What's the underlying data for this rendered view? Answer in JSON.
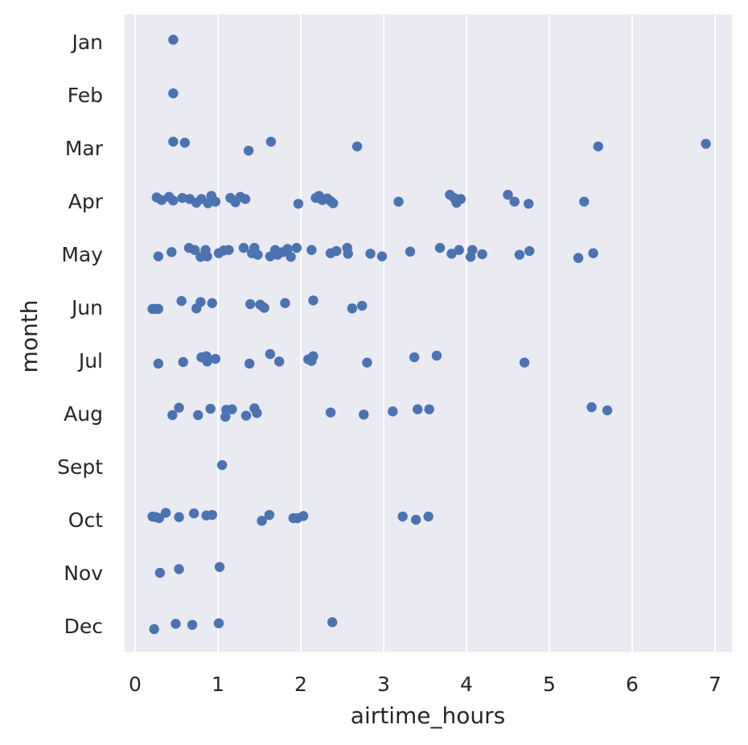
{
  "chart_data": {
    "type": "scatter",
    "title": "",
    "xlabel": "airtime_hours",
    "ylabel": "month",
    "xlim": [
      -0.12,
      7.22
    ],
    "xticks": [
      0,
      1,
      2,
      3,
      4,
      5,
      6,
      7
    ],
    "categories": [
      "Jan",
      "Feb",
      "Mar",
      "Apr",
      "May",
      "Jun",
      "Jul",
      "Aug",
      "Sept",
      "Oct",
      "Nov",
      "Dec"
    ],
    "grid": true,
    "colors": {
      "background": "#eaeaf2",
      "grid": "#ffffff",
      "point": "#4c72b0",
      "text": "#262626"
    },
    "points": [
      {
        "month": "Jan",
        "x": 0.46,
        "jitter": -0.04
      },
      {
        "month": "Feb",
        "x": 0.46,
        "jitter": -0.03
      },
      {
        "month": "Mar",
        "x": 0.46,
        "jitter": -0.12
      },
      {
        "month": "Mar",
        "x": 0.6,
        "jitter": -0.1
      },
      {
        "month": "Mar",
        "x": 1.37,
        "jitter": 0.05
      },
      {
        "month": "Mar",
        "x": 1.64,
        "jitter": -0.12
      },
      {
        "month": "Mar",
        "x": 2.68,
        "jitter": -0.03
      },
      {
        "month": "Mar",
        "x": 5.59,
        "jitter": -0.03
      },
      {
        "month": "Mar",
        "x": 6.89,
        "jitter": -0.08
      },
      {
        "month": "Apr",
        "x": 0.26,
        "jitter": -0.07
      },
      {
        "month": "Apr",
        "x": 0.32,
        "jitter": -0.02
      },
      {
        "month": "Apr",
        "x": 0.41,
        "jitter": -0.08
      },
      {
        "month": "Apr",
        "x": 0.46,
        "jitter": -0.01
      },
      {
        "month": "Apr",
        "x": 0.57,
        "jitter": -0.06
      },
      {
        "month": "Apr",
        "x": 0.66,
        "jitter": -0.04
      },
      {
        "month": "Apr",
        "x": 0.74,
        "jitter": 0.03
      },
      {
        "month": "Apr",
        "x": 0.8,
        "jitter": -0.04
      },
      {
        "month": "Apr",
        "x": 0.88,
        "jitter": 0.04
      },
      {
        "month": "Apr",
        "x": 0.92,
        "jitter": -0.1
      },
      {
        "month": "Apr",
        "x": 0.97,
        "jitter": 0.01
      },
      {
        "month": "Apr",
        "x": 1.15,
        "jitter": -0.06
      },
      {
        "month": "Apr",
        "x": 1.21,
        "jitter": 0.02
      },
      {
        "month": "Apr",
        "x": 1.27,
        "jitter": -0.08
      },
      {
        "month": "Apr",
        "x": 1.33,
        "jitter": -0.04
      },
      {
        "month": "Apr",
        "x": 1.97,
        "jitter": 0.05
      },
      {
        "month": "Apr",
        "x": 2.18,
        "jitter": -0.06
      },
      {
        "month": "Apr",
        "x": 2.22,
        "jitter": -0.1
      },
      {
        "month": "Apr",
        "x": 2.26,
        "jitter": -0.02
      },
      {
        "month": "Apr",
        "x": 2.32,
        "jitter": -0.05
      },
      {
        "month": "Apr",
        "x": 2.36,
        "jitter": 0.0
      },
      {
        "month": "Apr",
        "x": 2.39,
        "jitter": 0.04
      },
      {
        "month": "Apr",
        "x": 3.18,
        "jitter": 0.01
      },
      {
        "month": "Apr",
        "x": 3.8,
        "jitter": -0.12
      },
      {
        "month": "Apr",
        "x": 3.85,
        "jitter": -0.06
      },
      {
        "month": "Apr",
        "x": 3.88,
        "jitter": 0.03
      },
      {
        "month": "Apr",
        "x": 3.93,
        "jitter": -0.04
      },
      {
        "month": "Apr",
        "x": 4.5,
        "jitter": -0.12
      },
      {
        "month": "Apr",
        "x": 4.58,
        "jitter": 0.01
      },
      {
        "month": "Apr",
        "x": 4.75,
        "jitter": 0.05
      },
      {
        "month": "Apr",
        "x": 5.42,
        "jitter": 0.01
      },
      {
        "month": "May",
        "x": 0.28,
        "jitter": 0.04
      },
      {
        "month": "May",
        "x": 0.44,
        "jitter": -0.04
      },
      {
        "month": "May",
        "x": 0.65,
        "jitter": -0.12
      },
      {
        "month": "May",
        "x": 0.72,
        "jitter": -0.08
      },
      {
        "month": "May",
        "x": 0.79,
        "jitter": 0.05
      },
      {
        "month": "May",
        "x": 0.85,
        "jitter": -0.08
      },
      {
        "month": "May",
        "x": 0.87,
        "jitter": 0.04
      },
      {
        "month": "May",
        "x": 1.01,
        "jitter": -0.02
      },
      {
        "month": "May",
        "x": 1.07,
        "jitter": -0.07
      },
      {
        "month": "May",
        "x": 1.13,
        "jitter": -0.08
      },
      {
        "month": "May",
        "x": 1.31,
        "jitter": -0.12
      },
      {
        "month": "May",
        "x": 1.41,
        "jitter": -0.02
      },
      {
        "month": "May",
        "x": 1.44,
        "jitter": -0.12
      },
      {
        "month": "May",
        "x": 1.48,
        "jitter": 0.01
      },
      {
        "month": "May",
        "x": 1.63,
        "jitter": 0.04
      },
      {
        "month": "May",
        "x": 1.69,
        "jitter": -0.08
      },
      {
        "month": "May",
        "x": 1.72,
        "jitter": 0.01
      },
      {
        "month": "May",
        "x": 1.78,
        "jitter": -0.04
      },
      {
        "month": "May",
        "x": 1.84,
        "jitter": -0.1
      },
      {
        "month": "May",
        "x": 1.88,
        "jitter": 0.05
      },
      {
        "month": "May",
        "x": 1.95,
        "jitter": -0.12
      },
      {
        "month": "May",
        "x": 2.13,
        "jitter": -0.08
      },
      {
        "month": "May",
        "x": 2.36,
        "jitter": -0.02
      },
      {
        "month": "May",
        "x": 2.43,
        "jitter": -0.06
      },
      {
        "month": "May",
        "x": 2.56,
        "jitter": -0.12
      },
      {
        "month": "May",
        "x": 2.57,
        "jitter": -0.01
      },
      {
        "month": "May",
        "x": 2.84,
        "jitter": -0.01
      },
      {
        "month": "May",
        "x": 2.98,
        "jitter": 0.04
      },
      {
        "month": "May",
        "x": 3.32,
        "jitter": -0.05
      },
      {
        "month": "May",
        "x": 3.68,
        "jitter": -0.12
      },
      {
        "month": "May",
        "x": 3.82,
        "jitter": -0.01
      },
      {
        "month": "May",
        "x": 3.91,
        "jitter": -0.08
      },
      {
        "month": "May",
        "x": 4.05,
        "jitter": 0.05
      },
      {
        "month": "May",
        "x": 4.07,
        "jitter": -0.08
      },
      {
        "month": "May",
        "x": 4.19,
        "jitter": 0.0
      },
      {
        "month": "May",
        "x": 4.64,
        "jitter": 0.01
      },
      {
        "month": "May",
        "x": 4.76,
        "jitter": -0.06
      },
      {
        "month": "May",
        "x": 5.35,
        "jitter": 0.07
      },
      {
        "month": "May",
        "x": 5.53,
        "jitter": -0.02
      },
      {
        "month": "Jun",
        "x": 0.21,
        "jitter": 0.03
      },
      {
        "month": "Jun",
        "x": 0.25,
        "jitter": 0.03
      },
      {
        "month": "Jun",
        "x": 0.28,
        "jitter": 0.03
      },
      {
        "month": "Jun",
        "x": 0.56,
        "jitter": -0.12
      },
      {
        "month": "Jun",
        "x": 0.74,
        "jitter": 0.02
      },
      {
        "month": "Jun",
        "x": 0.79,
        "jitter": -0.1
      },
      {
        "month": "Jun",
        "x": 0.93,
        "jitter": -0.08
      },
      {
        "month": "Jun",
        "x": 1.39,
        "jitter": -0.06
      },
      {
        "month": "Jun",
        "x": 1.51,
        "jitter": -0.05
      },
      {
        "month": "Jun",
        "x": 1.55,
        "jitter": 0.0
      },
      {
        "month": "Jun",
        "x": 1.56,
        "jitter": 0.01
      },
      {
        "month": "Jun",
        "x": 1.81,
        "jitter": -0.08
      },
      {
        "month": "Jun",
        "x": 2.15,
        "jitter": -0.13
      },
      {
        "month": "Jun",
        "x": 2.62,
        "jitter": 0.02
      },
      {
        "month": "Jun",
        "x": 2.74,
        "jitter": -0.03
      },
      {
        "month": "Jul",
        "x": 0.28,
        "jitter": 0.06
      },
      {
        "month": "Jul",
        "x": 0.58,
        "jitter": 0.03
      },
      {
        "month": "Jul",
        "x": 0.8,
        "jitter": -0.06
      },
      {
        "month": "Jul",
        "x": 0.86,
        "jitter": -0.08
      },
      {
        "month": "Jul",
        "x": 0.87,
        "jitter": 0.02
      },
      {
        "month": "Jul",
        "x": 0.97,
        "jitter": -0.03
      },
      {
        "month": "Jul",
        "x": 1.38,
        "jitter": 0.06
      },
      {
        "month": "Jul",
        "x": 1.63,
        "jitter": -0.12
      },
      {
        "month": "Jul",
        "x": 1.74,
        "jitter": 0.02
      },
      {
        "month": "Jul",
        "x": 2.09,
        "jitter": -0.02
      },
      {
        "month": "Jul",
        "x": 2.13,
        "jitter": 0.01
      },
      {
        "month": "Jul",
        "x": 2.15,
        "jitter": -0.08
      },
      {
        "month": "Jul",
        "x": 2.8,
        "jitter": 0.04
      },
      {
        "month": "Jul",
        "x": 3.37,
        "jitter": -0.06
      },
      {
        "month": "Jul",
        "x": 3.64,
        "jitter": -0.09
      },
      {
        "month": "Jul",
        "x": 4.7,
        "jitter": 0.04
      },
      {
        "month": "Aug",
        "x": 0.45,
        "jitter": 0.03
      },
      {
        "month": "Aug",
        "x": 0.53,
        "jitter": -0.11
      },
      {
        "month": "Aug",
        "x": 0.76,
        "jitter": 0.03
      },
      {
        "month": "Aug",
        "x": 0.91,
        "jitter": -0.09
      },
      {
        "month": "Aug",
        "x": 1.09,
        "jitter": 0.06
      },
      {
        "month": "Aug",
        "x": 1.1,
        "jitter": -0.07
      },
      {
        "month": "Aug",
        "x": 1.17,
        "jitter": -0.08
      },
      {
        "month": "Aug",
        "x": 1.34,
        "jitter": 0.04
      },
      {
        "month": "Aug",
        "x": 1.44,
        "jitter": -0.1
      },
      {
        "month": "Aug",
        "x": 1.47,
        "jitter": -0.01
      },
      {
        "month": "Aug",
        "x": 2.36,
        "jitter": -0.02
      },
      {
        "month": "Aug",
        "x": 2.76,
        "jitter": 0.02
      },
      {
        "month": "Aug",
        "x": 3.11,
        "jitter": -0.04
      },
      {
        "month": "Aug",
        "x": 3.41,
        "jitter": -0.08
      },
      {
        "month": "Aug",
        "x": 3.55,
        "jitter": -0.08
      },
      {
        "month": "Aug",
        "x": 5.51,
        "jitter": -0.12
      },
      {
        "month": "Aug",
        "x": 5.7,
        "jitter": -0.06
      },
      {
        "month": "Sept",
        "x": 1.05,
        "jitter": -0.03
      },
      {
        "month": "Oct",
        "x": 0.21,
        "jitter": -0.06
      },
      {
        "month": "Oct",
        "x": 0.25,
        "jitter": -0.05
      },
      {
        "month": "Oct",
        "x": 0.29,
        "jitter": -0.03
      },
      {
        "month": "Oct",
        "x": 0.37,
        "jitter": -0.13
      },
      {
        "month": "Oct",
        "x": 0.53,
        "jitter": -0.05
      },
      {
        "month": "Oct",
        "x": 0.71,
        "jitter": -0.12
      },
      {
        "month": "Oct",
        "x": 0.86,
        "jitter": -0.08
      },
      {
        "month": "Oct",
        "x": 0.93,
        "jitter": -0.09
      },
      {
        "month": "Oct",
        "x": 1.53,
        "jitter": 0.02
      },
      {
        "month": "Oct",
        "x": 1.62,
        "jitter": -0.09
      },
      {
        "month": "Oct",
        "x": 1.91,
        "jitter": -0.03
      },
      {
        "month": "Oct",
        "x": 1.96,
        "jitter": -0.03
      },
      {
        "month": "Oct",
        "x": 2.03,
        "jitter": -0.07
      },
      {
        "month": "Oct",
        "x": 3.23,
        "jitter": -0.06
      },
      {
        "month": "Oct",
        "x": 3.39,
        "jitter": 0.0
      },
      {
        "month": "Oct",
        "x": 3.54,
        "jitter": -0.06
      },
      {
        "month": "Nov",
        "x": 0.3,
        "jitter": 0.0
      },
      {
        "month": "Nov",
        "x": 0.53,
        "jitter": -0.07
      },
      {
        "month": "Nov",
        "x": 1.02,
        "jitter": -0.11
      },
      {
        "month": "Dec",
        "x": 0.23,
        "jitter": 0.06
      },
      {
        "month": "Dec",
        "x": 0.49,
        "jitter": -0.04
      },
      {
        "month": "Dec",
        "x": 0.69,
        "jitter": -0.02
      },
      {
        "month": "Dec",
        "x": 1.01,
        "jitter": -0.05
      },
      {
        "month": "Dec",
        "x": 2.38,
        "jitter": -0.07
      }
    ]
  }
}
